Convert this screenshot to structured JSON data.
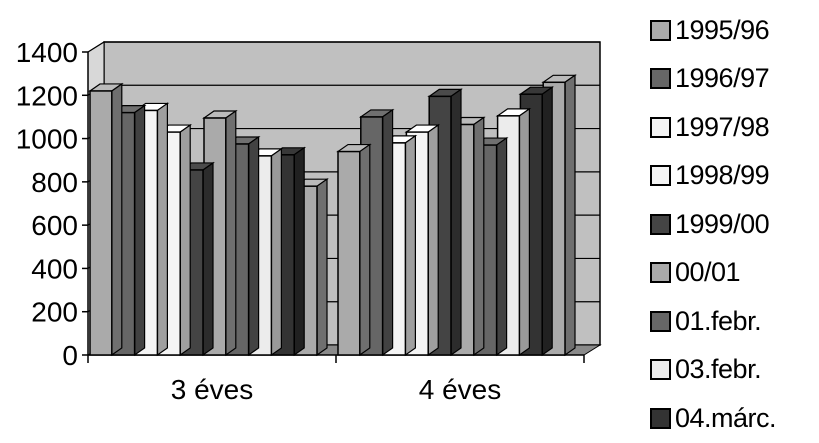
{
  "chart_data": {
    "type": "bar",
    "style": "3d-clustered-column",
    "categories": [
      "3 éves",
      "4 éves"
    ],
    "ylim": [
      0,
      1400
    ],
    "yticks": [
      "0",
      "200",
      "400",
      "600",
      "800",
      "1000",
      "1200",
      "1400"
    ],
    "grid": true,
    "legend_position": "right",
    "series": [
      {
        "name": "1995/96",
        "color": "#aaaaaa",
        "values": [
          1220,
          940
        ]
      },
      {
        "name": "1996/97",
        "color": "#666666",
        "values": [
          1120,
          1100
        ]
      },
      {
        "name": "1997/98",
        "color": "#f4f4f4",
        "values": [
          1130,
          980
        ]
      },
      {
        "name": "1998/99",
        "color": "#f4f4f4",
        "values": [
          1030,
          1030
        ]
      },
      {
        "name": "1999/00",
        "color": "#444444",
        "values": [
          855,
          1195
        ]
      },
      {
        "name": "00/01",
        "color": "#aaaaaa",
        "values": [
          1095,
          1065
        ]
      },
      {
        "name": "01.febr.",
        "color": "#666666",
        "values": [
          975,
          970
        ]
      },
      {
        "name": "03.febr.",
        "color": "#ececec",
        "values": [
          920,
          1105
        ]
      },
      {
        "name": "04.márc.",
        "color": "#333333",
        "values": [
          925,
          1205
        ]
      },
      {
        "name": "",
        "color": "#aaaaaa",
        "values": [
          780,
          1260
        ]
      }
    ]
  }
}
